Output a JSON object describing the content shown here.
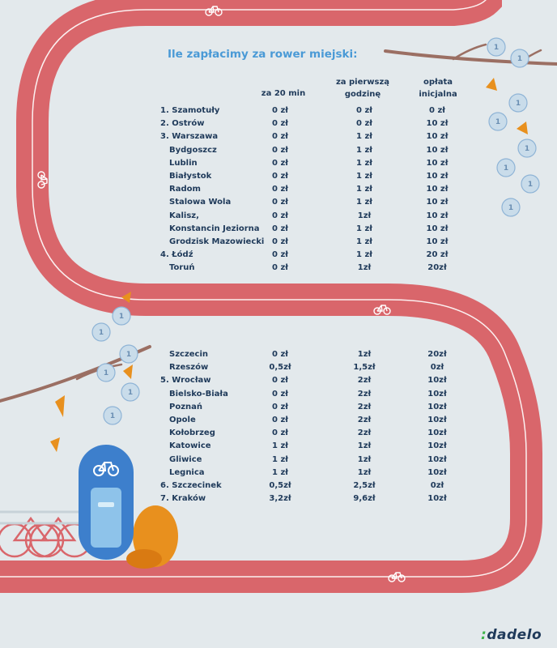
{
  "title": "Ile zapłacimy za rower miejski:",
  "headers": {
    "col2": "za 20 min",
    "col3_line1": "za pierwszą",
    "col3_line2": "godzinę",
    "col4_line1": "opłata",
    "col4_line2": "inicjalna"
  },
  "rows_top": [
    {
      "city": "1. Szamotuły",
      "min20": "0 zł",
      "hour1": "0 zł",
      "initial": "0 zł",
      "indent": false
    },
    {
      "city": "2. Ostrów",
      "min20": "0 zł",
      "hour1": "0 zł",
      "initial": "10 zł",
      "indent": false
    },
    {
      "city": "3. Warszawa",
      "min20": "0 zł",
      "hour1": "1 zł",
      "initial": "10 zł",
      "indent": false
    },
    {
      "city": "Bydgoszcz",
      "min20": "0 zł",
      "hour1": "1 zł",
      "initial": "10 zł",
      "indent": true
    },
    {
      "city": "Lublin",
      "min20": "0 zł",
      "hour1": "1 zł",
      "initial": "10 zł",
      "indent": true
    },
    {
      "city": "Białystok",
      "min20": "0 zł",
      "hour1": "1 zł",
      "initial": "10 zł",
      "indent": true
    },
    {
      "city": "Radom",
      "min20": "0 zł",
      "hour1": "1 zł",
      "initial": "10 zł",
      "indent": true
    },
    {
      "city": "Stalowa Wola",
      "min20": "0 zł",
      "hour1": "1 zł",
      "initial": "10 zł",
      "indent": true
    },
    {
      "city": "Kalisz,",
      "min20": "0 zł",
      "hour1": "1zł",
      "initial": "10 zł",
      "indent": true
    },
    {
      "city": "Konstancin Jeziorna",
      "min20": "0 zł",
      "hour1": "1 zł",
      "initial": "10 zł",
      "indent": true
    },
    {
      "city": "Grodzisk Mazowiecki",
      "min20": "0 zł",
      "hour1": "1 zł",
      "initial": "10 zł",
      "indent": true
    },
    {
      "city": "4. Łódź",
      "min20": "0 zł",
      "hour1": "1 zł",
      "initial": "20 zł",
      "indent": false
    },
    {
      "city": "Toruń",
      "min20": "0 zł",
      "hour1": "1zł",
      "initial": "20zł",
      "indent": true
    }
  ],
  "rows_bottom": [
    {
      "city": "Szczecin",
      "min20": "0 zł",
      "hour1": "1zł",
      "initial": "20zł",
      "indent": true
    },
    {
      "city": "Rzeszów",
      "min20": "0,5zł",
      "hour1": "1,5zł",
      "initial": "0zł",
      "indent": true
    },
    {
      "city": "5. Wrocław",
      "min20": "0 zł",
      "hour1": "2zł",
      "initial": "10zł",
      "indent": false
    },
    {
      "city": "Bielsko-Biała",
      "min20": "0 zł",
      "hour1": "2zł",
      "initial": "10zł",
      "indent": true
    },
    {
      "city": "Poznań",
      "min20": "0 zł",
      "hour1": "2zł",
      "initial": "10zł",
      "indent": true
    },
    {
      "city": "Opole",
      "min20": "0 zł",
      "hour1": "2zł",
      "initial": "10zł",
      "indent": true
    },
    {
      "city": "Kołobrzeg",
      "min20": "0 zł",
      "hour1": "2zł",
      "initial": "10zł",
      "indent": true
    },
    {
      "city": "Katowice",
      "min20": "1 zł",
      "hour1": "1zł",
      "initial": "10zł",
      "indent": true
    },
    {
      "city": "Gliwice",
      "min20": "1 zł",
      "hour1": "1zł",
      "initial": "10zł",
      "indent": true
    },
    {
      "city": "Legnica",
      "min20": "1 zł",
      "hour1": "1zł",
      "initial": "10zł",
      "indent": true
    },
    {
      "city": "6. Szczecinek",
      "min20": "0,5zł",
      "hour1": "2,5zł",
      "initial": "0zł",
      "indent": false
    },
    {
      "city": "7. Kraków",
      "min20": "3,2zł",
      "hour1": "9,6zł",
      "initial": "10zł",
      "indent": false
    }
  ],
  "coin_label": "1",
  "logo_text": "dadelo",
  "colors": {
    "background": "#e3e9ec",
    "track": "#d9666b",
    "track_line": "#ffffff",
    "title": "#4a9ad6",
    "text": "#1f3a5a",
    "coin": "#c9dcea",
    "leaf": "#e8901e",
    "branch": "#9b6f63",
    "station": "#3d7fcc",
    "logo_accent": "#3cb34a"
  },
  "icons": [
    "bicycle-icon",
    "coin-icon",
    "leaf-icon",
    "branch",
    "bike-station",
    "parked-bicycles",
    "bush"
  ]
}
